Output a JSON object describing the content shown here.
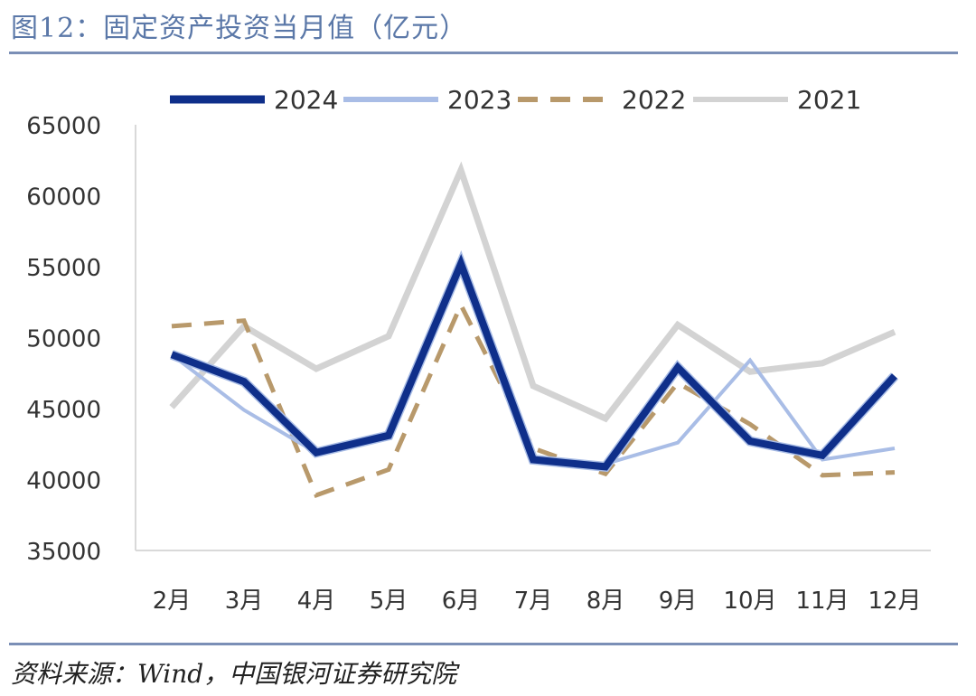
{
  "header": {
    "title": "图12：固定资产投资当月值（亿元）"
  },
  "footer": {
    "source": "资料来源：Wind，中国银河证券研究院"
  },
  "chart_data": {
    "type": "line",
    "title": "图12：固定资产投资当月值（亿元）",
    "xlabel": "",
    "ylabel": "",
    "ylim": [
      35000,
      65000
    ],
    "yticks": [
      35000,
      40000,
      45000,
      50000,
      55000,
      60000,
      65000
    ],
    "categories": [
      "2月",
      "3月",
      "4月",
      "5月",
      "6月",
      "7月",
      "8月",
      "9月",
      "10月",
      "11月",
      "12月"
    ],
    "legend_position": "top",
    "series": [
      {
        "name": "2024",
        "color": "#0f2f8a",
        "dash": "solid",
        "width": 8,
        "values": [
          48800,
          46900,
          41900,
          43100,
          55200,
          41400,
          40900,
          47900,
          42700,
          41700,
          47300
        ]
      },
      {
        "name": "2023",
        "color": "#a9bde6",
        "dash": "solid",
        "width": 4,
        "values": [
          48800,
          44900,
          41900,
          43100,
          55200,
          41400,
          41100,
          42600,
          48400,
          41400,
          42200
        ]
      },
      {
        "name": "2022",
        "color": "#b8996b",
        "dash": "dashed",
        "width": 5,
        "values": [
          50800,
          51200,
          38900,
          40700,
          52300,
          42200,
          40400,
          46800,
          43900,
          40300,
          40500
        ]
      },
      {
        "name": "2021",
        "color": "#d3d3d3",
        "dash": "solid",
        "width": 7,
        "values": [
          45100,
          50800,
          47800,
          50100,
          61800,
          46600,
          44300,
          50900,
          47600,
          48200,
          50400
        ]
      }
    ]
  }
}
